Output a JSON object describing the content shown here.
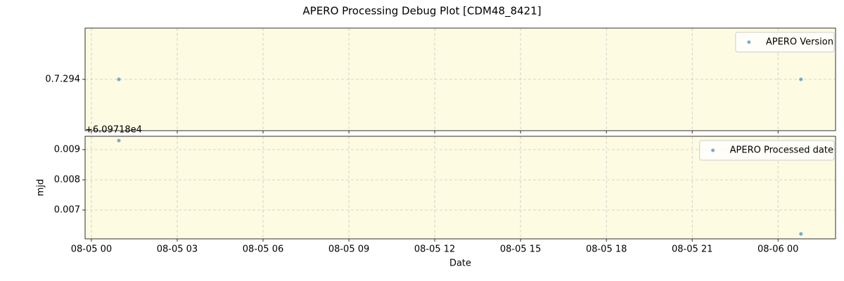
{
  "title": "APERO Processing Debug Plot [CDM48_8421]",
  "chart_data": [
    {
      "type": "scatter",
      "x": [
        0.96,
        24.8
      ],
      "xlim": [
        -0.22,
        26.01
      ],
      "series": [
        {
          "name": "APERO Version",
          "color": "#1f77b4",
          "values": [
            0,
            0
          ]
        }
      ],
      "ylim": [
        -1,
        1
      ],
      "yticks": [
        {
          "value": 0,
          "label": "0.7.294"
        }
      ],
      "grid": true,
      "legend": "upper-right",
      "background": "#fdfbe2"
    },
    {
      "type": "scatter",
      "x": [
        0.96,
        24.8
      ],
      "xlim": [
        -0.22,
        26.01
      ],
      "xticks": [
        {
          "value": 0,
          "label": "08-05 00"
        },
        {
          "value": 3,
          "label": "08-05 03"
        },
        {
          "value": 6,
          "label": "08-05 06"
        },
        {
          "value": 9,
          "label": "08-05 09"
        },
        {
          "value": 12,
          "label": "08-05 12"
        },
        {
          "value": 15,
          "label": "08-05 15"
        },
        {
          "value": 18,
          "label": "08-05 18"
        },
        {
          "value": 21,
          "label": "08-05 21"
        },
        {
          "value": 24,
          "label": "08-06 00"
        }
      ],
      "series": [
        {
          "name": "APERO Processed date",
          "color": "#1f77b4",
          "values": [
            0.0093,
            0.00621
          ]
        }
      ],
      "ylim": [
        0.006047,
        0.009442
      ],
      "yticks": [
        0.007,
        0.008,
        0.009
      ],
      "offset_label": "+6.09718e4",
      "ylabel": "mjd",
      "xlabel": "Date",
      "grid": true,
      "legend": "upper-right",
      "background": "#fdfbe2"
    }
  ]
}
